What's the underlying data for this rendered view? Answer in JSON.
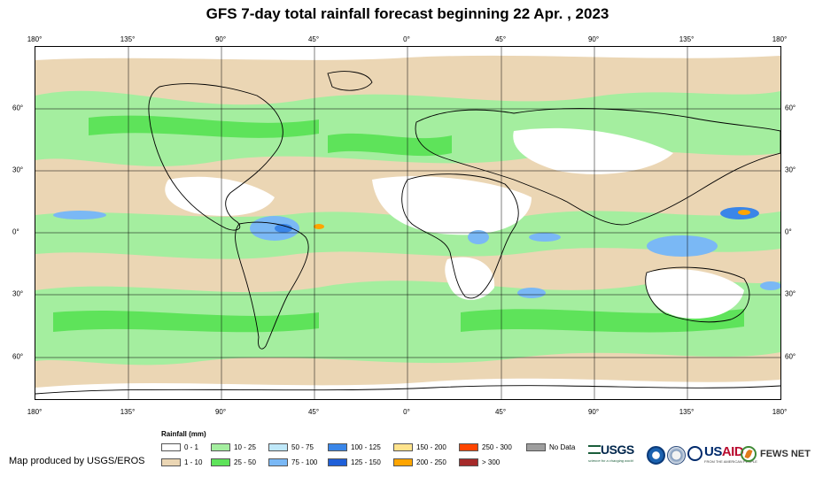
{
  "title": "GFS 7-day total rainfall forecast beginning 22 Apr. , 2023",
  "map": {
    "lon_labels": [
      "180°",
      "135°",
      "90°",
      "45°",
      "0°",
      "45°",
      "90°",
      "135°",
      "180°"
    ],
    "lat_labels": [
      "60°",
      "30°",
      "0°",
      "30°",
      "60°"
    ],
    "lon_range": [
      -180,
      180
    ],
    "lat_range": [
      -80,
      90
    ]
  },
  "legend": {
    "title": "Rainfall (mm)",
    "items": [
      {
        "label": "0 - 1",
        "color": "#ffffff"
      },
      {
        "label": "1 - 10",
        "color": "#ebd6b4"
      },
      {
        "label": "10 - 25",
        "color": "#a4ee9f"
      },
      {
        "label": "25 - 50",
        "color": "#5ee35a"
      },
      {
        "label": "50 - 75",
        "color": "#bfe8f9"
      },
      {
        "label": "75 - 100",
        "color": "#7ab8f5"
      },
      {
        "label": "100 - 125",
        "color": "#3a86e8"
      },
      {
        "label": "125 - 150",
        "color": "#1f5fd8"
      },
      {
        "label": "150 - 200",
        "color": "#ffe38c"
      },
      {
        "label": "200 - 250",
        "color": "#ffa500"
      },
      {
        "label": "250 - 300",
        "color": "#ff4500"
      },
      {
        "label": "> 300",
        "color": "#a52a2a"
      },
      {
        "label": "No Data",
        "color": "#9e9e9e"
      }
    ]
  },
  "credit": "Map produced by USGS/EROS",
  "logos": {
    "usgs": "USGS",
    "usgs_tagline": "science for a changing world",
    "usaid_prefix": "US",
    "usaid_suffix": "AID",
    "usaid_tagline": "FROM THE AMERICAN PEOPLE",
    "fews": "FEWS NET"
  },
  "colors": {
    "dry": "#ffffff",
    "light": "#ebd6b4",
    "green_light": "#a4ee9f",
    "green": "#5ee35a",
    "blue_light": "#bfe8f9",
    "blue": "#7ab8f5",
    "blue_dark": "#3a86e8",
    "orange": "#ffa500"
  }
}
